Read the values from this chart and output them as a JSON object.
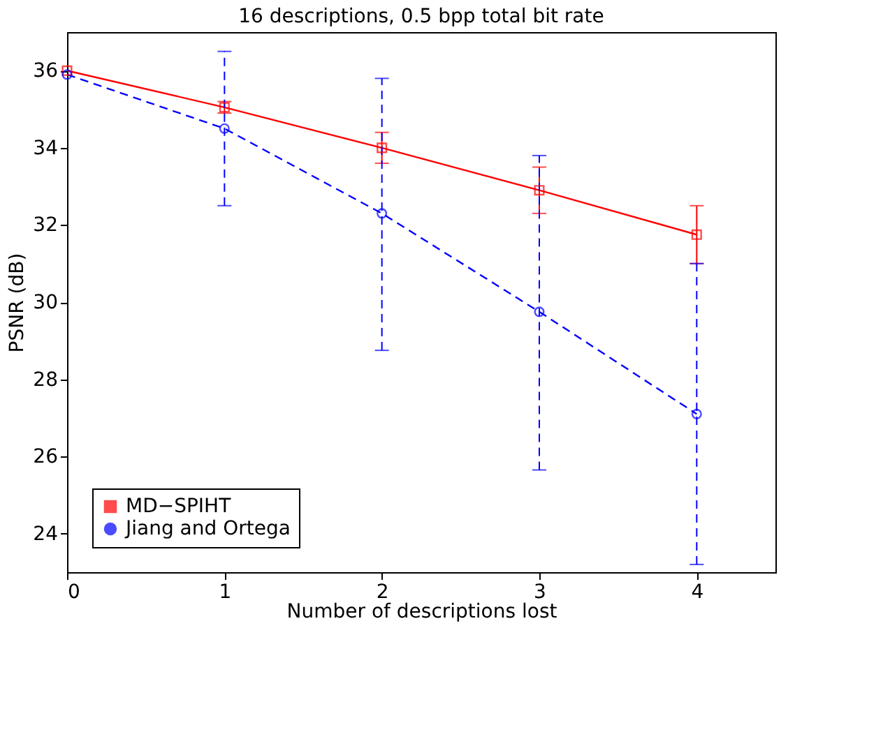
{
  "chart_data": {
    "type": "line",
    "title": "16 descriptions, 0.5 bpp total bit rate",
    "xlabel": "Number of descriptions lost",
    "ylabel": "PSNR  (dB)",
    "x": [
      0,
      1,
      2,
      3,
      4
    ],
    "series": [
      {
        "name": "MD−SPIHT",
        "color": "#ff0000",
        "marker": "square",
        "line_style": "solid",
        "values": [
          36.0,
          35.05,
          34.0,
          32.9,
          31.75
        ],
        "errors": [
          null,
          [
            34.9,
            35.2
          ],
          [
            33.6,
            34.4
          ],
          [
            32.3,
            33.5
          ],
          [
            31.0,
            32.5
          ]
        ]
      },
      {
        "name": "Jiang and Ortega",
        "color": "#0000ff",
        "marker": "circle",
        "line_style": "dashed",
        "values": [
          35.9,
          34.5,
          32.3,
          29.75,
          27.1
        ],
        "errors": [
          null,
          [
            32.5,
            36.5
          ],
          [
            28.75,
            35.8
          ],
          [
            25.65,
            33.8
          ],
          [
            23.2,
            31.0
          ]
        ]
      }
    ],
    "xlim": [
      0,
      4.5
    ],
    "xticks": [
      0,
      1,
      2,
      3,
      4
    ],
    "ylim": [
      23,
      37
    ],
    "yticks": [
      24,
      26,
      28,
      30,
      32,
      34,
      36
    ],
    "grid": false,
    "legend": "bottom left"
  }
}
